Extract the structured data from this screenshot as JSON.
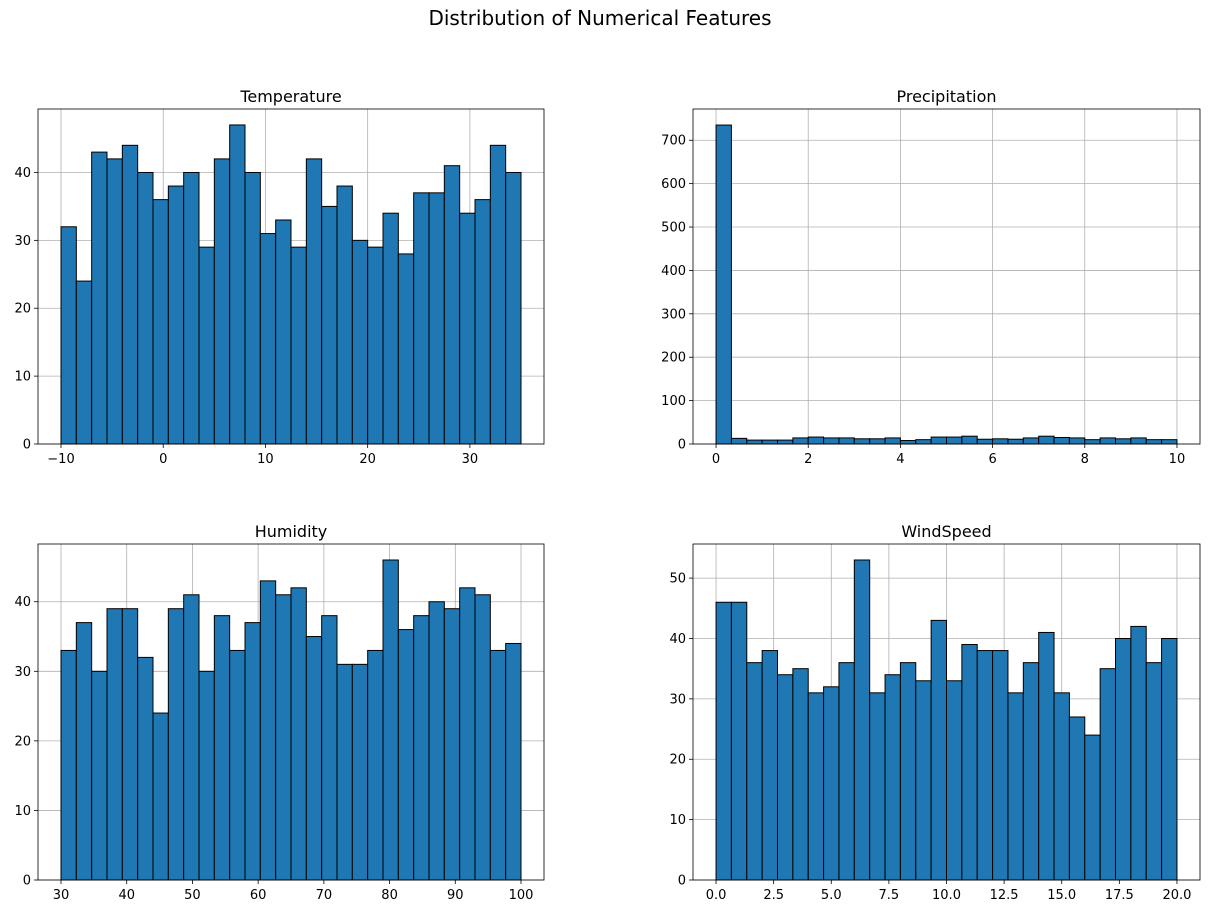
{
  "figure": {
    "suptitle": "Distribution of Numerical Features",
    "bar_color": "#1f77b4",
    "edge_color": "#000000",
    "grid_color": "#b0b0b0"
  },
  "chart_data": [
    {
      "type": "bar",
      "title": "Temperature",
      "xlabel": "",
      "ylabel": "",
      "bin_range": [
        -10,
        35
      ],
      "xlim": [
        -12.25,
        37.25
      ],
      "ylim": [
        0,
        49.35
      ],
      "xticks": [
        -10,
        0,
        10,
        20,
        30
      ],
      "yticks": [
        0,
        10,
        20,
        30,
        40
      ],
      "grid": true,
      "values": [
        32,
        24,
        43,
        42,
        44,
        40,
        36,
        38,
        40,
        29,
        42,
        47,
        40,
        31,
        33,
        29,
        42,
        35,
        38,
        30,
        29,
        34,
        28,
        37,
        37,
        41,
        34,
        36,
        44,
        40
      ]
    },
    {
      "type": "bar",
      "title": "Precipitation",
      "xlabel": "",
      "ylabel": "",
      "bin_range": [
        0,
        10
      ],
      "xlim": [
        -0.5,
        10.5
      ],
      "ylim": [
        0,
        772
      ],
      "xticks": [
        0,
        2,
        4,
        6,
        8,
        10
      ],
      "yticks": [
        0,
        100,
        200,
        300,
        400,
        500,
        600,
        700
      ],
      "grid": true,
      "values": [
        735,
        13,
        9,
        9,
        9,
        14,
        16,
        14,
        14,
        12,
        12,
        14,
        8,
        10,
        16,
        16,
        18,
        11,
        12,
        11,
        14,
        18,
        15,
        14,
        10,
        14,
        12,
        14,
        10,
        10
      ]
    },
    {
      "type": "bar",
      "title": "Humidity",
      "xlabel": "",
      "ylabel": "",
      "bin_range": [
        30,
        100
      ],
      "xlim": [
        26.5,
        103.5
      ],
      "ylim": [
        0,
        48.3
      ],
      "xticks": [
        30,
        40,
        50,
        60,
        70,
        80,
        90,
        100
      ],
      "yticks": [
        0,
        10,
        20,
        30,
        40
      ],
      "grid": true,
      "values": [
        33,
        37,
        30,
        39,
        39,
        32,
        24,
        39,
        41,
        30,
        38,
        33,
        37,
        43,
        41,
        42,
        35,
        38,
        31,
        31,
        33,
        46,
        36,
        38,
        40,
        39,
        42,
        41,
        33,
        34
      ]
    },
    {
      "type": "bar",
      "title": "WindSpeed",
      "xlabel": "",
      "ylabel": "",
      "bin_range": [
        0,
        20
      ],
      "xlim": [
        -1,
        21
      ],
      "ylim": [
        0,
        55.65
      ],
      "xticks": [
        0.0,
        2.5,
        5.0,
        7.5,
        10.0,
        12.5,
        15.0,
        17.5,
        20.0
      ],
      "xtick_labels": [
        "0.0",
        "2.5",
        "5.0",
        "7.5",
        "10.0",
        "12.5",
        "15.0",
        "17.5",
        "20.0"
      ],
      "yticks": [
        0,
        10,
        20,
        30,
        40,
        50
      ],
      "grid": true,
      "values": [
        46,
        46,
        36,
        38,
        34,
        35,
        31,
        32,
        36,
        53,
        31,
        34,
        36,
        33,
        43,
        33,
        39,
        38,
        38,
        31,
        36,
        41,
        31,
        27,
        24,
        35,
        40,
        42,
        36,
        40
      ]
    }
  ]
}
